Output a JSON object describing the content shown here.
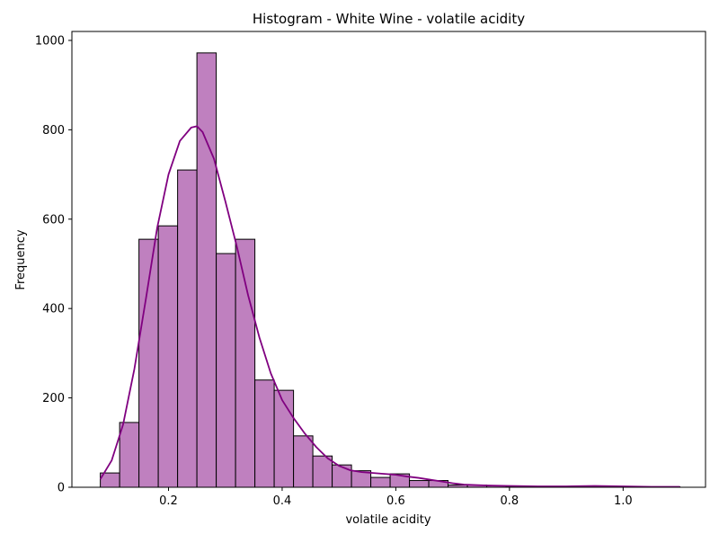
{
  "chart_data": {
    "type": "bar",
    "title": "Histogram - White Wine - volatile acidity",
    "xlabel": "volatile acidity",
    "ylabel": "Frequency",
    "xlim": [
      0.03,
      1.145
    ],
    "ylim": [
      0,
      1020
    ],
    "x_ticks": [
      0.2,
      0.4,
      0.6,
      0.8,
      1.0
    ],
    "x_tick_labels": [
      "0.2",
      "0.4",
      "0.6",
      "0.8",
      "1.0"
    ],
    "y_ticks": [
      0,
      200,
      400,
      600,
      800,
      1000
    ],
    "y_tick_labels": [
      "0",
      "200",
      "400",
      "600",
      "800",
      "1000"
    ],
    "bin_edges": [
      0.08,
      0.114,
      0.148,
      0.182,
      0.216,
      0.25,
      0.284,
      0.318,
      0.352,
      0.386,
      0.42,
      0.454,
      0.488,
      0.522,
      0.556,
      0.59,
      0.624,
      0.658,
      0.692,
      0.726,
      0.76,
      0.794,
      0.828,
      0.862,
      0.896,
      0.93,
      0.964,
      0.998,
      1.032,
      1.066,
      1.1
    ],
    "values": [
      32,
      145,
      555,
      585,
      710,
      972,
      523,
      555,
      240,
      217,
      115,
      70,
      50,
      37,
      22,
      30,
      15,
      15,
      5,
      5,
      3,
      2,
      2,
      1,
      1,
      1,
      1,
      0,
      0,
      1
    ],
    "kde": {
      "x": [
        0.08,
        0.1,
        0.12,
        0.14,
        0.16,
        0.18,
        0.2,
        0.22,
        0.24,
        0.25,
        0.26,
        0.28,
        0.3,
        0.32,
        0.34,
        0.36,
        0.38,
        0.4,
        0.42,
        0.44,
        0.46,
        0.48,
        0.5,
        0.52,
        0.54,
        0.56,
        0.58,
        0.6,
        0.62,
        0.64,
        0.66,
        0.68,
        0.7,
        0.72,
        0.76,
        0.8,
        0.85,
        0.9,
        0.95,
        1.0,
        1.05,
        1.1
      ],
      "y": [
        18,
        60,
        140,
        265,
        420,
        580,
        700,
        775,
        805,
        808,
        795,
        735,
        640,
        540,
        430,
        335,
        255,
        195,
        155,
        120,
        90,
        65,
        48,
        38,
        34,
        32,
        30,
        28,
        24,
        21,
        17,
        13,
        9,
        6,
        4,
        3,
        2,
        2,
        3,
        2,
        1,
        1
      ]
    },
    "bar_fill": "#bf80bf",
    "bar_edge": "#000000",
    "kde_color": "#800080",
    "grid": false,
    "legend": "none"
  }
}
